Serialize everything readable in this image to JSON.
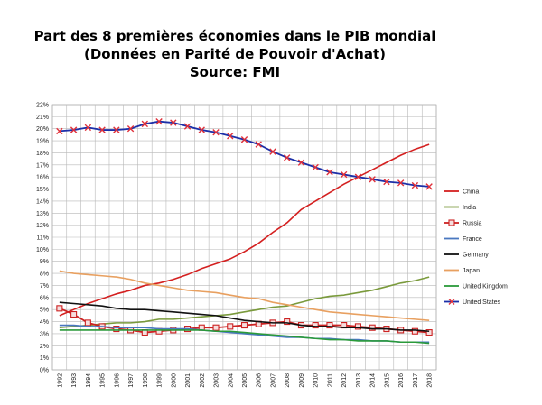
{
  "chart_data": {
    "type": "line",
    "title": "Part des 8 premières économies dans le PIB mondial",
    "subtitle": "(Données en Parité de Pouvoir d'Achat)",
    "source": "Source: FMI",
    "xlabel": "",
    "ylabel": "",
    "ylim": [
      0,
      22
    ],
    "yticks": [
      "0%",
      "1%",
      "2%",
      "3%",
      "4%",
      "5%",
      "6%",
      "7%",
      "8%",
      "9%",
      "10%",
      "11%",
      "12%",
      "13%",
      "14%",
      "15%",
      "16%",
      "17%",
      "18%",
      "19%",
      "20%",
      "21%",
      "22%"
    ],
    "categories": [
      "1992",
      "1993",
      "1994",
      "1995",
      "1996",
      "1997",
      "1998",
      "1999",
      "2000",
      "2001",
      "2002",
      "2003",
      "2004",
      "2005",
      "2006",
      "2007",
      "2008",
      "2009",
      "2010",
      "2011",
      "2012",
      "2013",
      "2014",
      "2015",
      "2016",
      "2017",
      "2018"
    ],
    "grid": true,
    "legend_position": "right",
    "series": [
      {
        "name": "China",
        "color": "#d42020",
        "marker": "none",
        "values": [
          4.5,
          5.0,
          5.5,
          5.9,
          6.3,
          6.6,
          7.0,
          7.2,
          7.5,
          7.9,
          8.4,
          8.8,
          9.2,
          9.8,
          10.5,
          11.4,
          12.2,
          13.3,
          14.0,
          14.7,
          15.4,
          16.0,
          16.6,
          17.2,
          17.8,
          18.3,
          18.7
        ]
      },
      {
        "name": "India",
        "color": "#7a9a3c",
        "marker": "none",
        "values": [
          3.5,
          3.6,
          3.7,
          3.8,
          3.9,
          3.9,
          4.0,
          4.2,
          4.2,
          4.3,
          4.4,
          4.5,
          4.6,
          4.8,
          5.0,
          5.2,
          5.3,
          5.6,
          5.9,
          6.1,
          6.2,
          6.4,
          6.6,
          6.9,
          7.2,
          7.4,
          7.7
        ]
      },
      {
        "name": "Russia",
        "color": "#cc2222",
        "marker": "square",
        "values": [
          5.1,
          4.6,
          3.9,
          3.6,
          3.4,
          3.3,
          3.1,
          3.2,
          3.3,
          3.4,
          3.5,
          3.5,
          3.6,
          3.7,
          3.8,
          3.9,
          4.0,
          3.7,
          3.7,
          3.7,
          3.7,
          3.6,
          3.5,
          3.4,
          3.3,
          3.2,
          3.1
        ]
      },
      {
        "name": "France",
        "color": "#4a78c0",
        "marker": "none",
        "values": [
          3.7,
          3.7,
          3.6,
          3.6,
          3.5,
          3.5,
          3.5,
          3.4,
          3.4,
          3.4,
          3.3,
          3.2,
          3.1,
          3.0,
          2.9,
          2.8,
          2.7,
          2.7,
          2.6,
          2.6,
          2.5,
          2.5,
          2.4,
          2.4,
          2.3,
          2.3,
          2.3
        ]
      },
      {
        "name": "Germany",
        "color": "#111111",
        "marker": "none",
        "values": [
          5.6,
          5.5,
          5.4,
          5.3,
          5.1,
          5.0,
          5.0,
          4.9,
          4.8,
          4.7,
          4.6,
          4.5,
          4.3,
          4.1,
          4.0,
          3.9,
          3.9,
          3.7,
          3.6,
          3.6,
          3.5,
          3.5,
          3.4,
          3.4,
          3.3,
          3.3,
          3.2
        ]
      },
      {
        "name": "Japan",
        "color": "#e8a060",
        "marker": "none",
        "values": [
          8.2,
          8.0,
          7.9,
          7.8,
          7.7,
          7.5,
          7.2,
          7.0,
          6.8,
          6.6,
          6.5,
          6.4,
          6.2,
          6.0,
          5.9,
          5.6,
          5.4,
          5.2,
          5.0,
          4.8,
          4.7,
          4.6,
          4.5,
          4.4,
          4.3,
          4.2,
          4.1
        ]
      },
      {
        "name": "United Kingdom",
        "color": "#2a9a3a",
        "marker": "none",
        "values": [
          3.3,
          3.3,
          3.3,
          3.3,
          3.3,
          3.3,
          3.3,
          3.3,
          3.3,
          3.3,
          3.3,
          3.2,
          3.2,
          3.1,
          3.0,
          2.9,
          2.8,
          2.7,
          2.6,
          2.5,
          2.5,
          2.4,
          2.4,
          2.4,
          2.3,
          2.3,
          2.2
        ]
      },
      {
        "name": "United States",
        "color": "#1c2fa8",
        "marker": "x",
        "values": [
          19.8,
          19.9,
          20.1,
          19.9,
          19.9,
          20.0,
          20.4,
          20.6,
          20.5,
          20.2,
          19.9,
          19.7,
          19.4,
          19.1,
          18.7,
          18.1,
          17.6,
          17.2,
          16.8,
          16.4,
          16.2,
          16.0,
          15.8,
          15.6,
          15.5,
          15.3,
          15.2
        ]
      }
    ]
  }
}
